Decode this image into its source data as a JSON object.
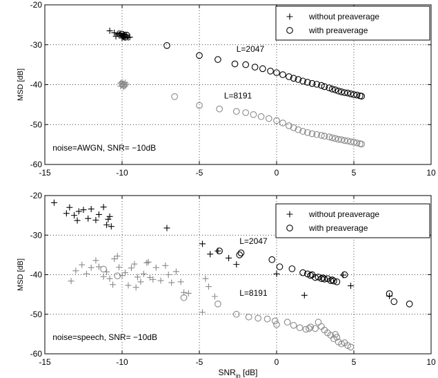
{
  "chart_data": [
    {
      "type": "scatter",
      "xlim": [
        -15,
        10
      ],
      "ylim": [
        -60,
        -20
      ],
      "xticks": [
        -15,
        -10,
        -5,
        0,
        5,
        10
      ],
      "yticks": [
        -60,
        -50,
        -40,
        -30,
        -20
      ],
      "xlabel_main": "",
      "xlabel_sub": "",
      "xlabel_unit": "",
      "ylabel": "MSD [dB]",
      "grid": true,
      "legend_position": "top-right",
      "annotations": [
        {
          "text": "L=2047",
          "x": -2.6,
          "y": -31.8
        },
        {
          "text": "L=8191",
          "x": -3.4,
          "y": -43.5
        },
        {
          "text": "noise=AWGN, SNR= −10dB",
          "x": -14.5,
          "y": -56.5
        }
      ],
      "series": [
        {
          "name": "without preaverage",
          "marker": "plus",
          "color": "#000000",
          "points": [
            [
              -10.8,
              -26.5
            ],
            [
              -10.5,
              -27.0
            ],
            [
              -10.3,
              -27.3
            ],
            [
              -10.2,
              -27.6
            ],
            [
              -10.1,
              -27.2
            ],
            [
              -10.0,
              -27.8
            ],
            [
              -9.9,
              -27.4
            ],
            [
              -9.8,
              -28.0
            ],
            [
              -9.7,
              -27.6
            ],
            [
              -9.6,
              -28.2
            ],
            [
              -10.4,
              -27.9
            ],
            [
              -10.0,
              -28.3
            ],
            [
              -9.5,
              -28.1
            ],
            [
              -9.9,
              -27.9
            ],
            [
              -10.2,
              -27.1
            ],
            [
              -9.8,
              -27.5
            ]
          ]
        },
        {
          "name": "with preaverage",
          "marker": "circle",
          "color": "#000000",
          "points": [
            [
              -10.0,
              -27.4
            ],
            [
              -9.9,
              -27.8
            ],
            [
              -9.8,
              -28.1
            ],
            [
              -9.7,
              -27.6
            ],
            [
              -7.1,
              -30.2
            ],
            [
              -5.0,
              -32.7
            ],
            [
              -3.8,
              -33.7
            ],
            [
              -2.7,
              -34.8
            ],
            [
              -2.0,
              -35.0
            ],
            [
              -1.4,
              -35.6
            ],
            [
              -0.9,
              -36.0
            ],
            [
              -0.4,
              -36.6
            ],
            [
              0.0,
              -37.0
            ],
            [
              0.4,
              -37.5
            ],
            [
              0.8,
              -38.0
            ],
            [
              1.1,
              -38.4
            ],
            [
              1.4,
              -38.7
            ],
            [
              1.7,
              -39.1
            ],
            [
              2.0,
              -39.4
            ],
            [
              2.3,
              -39.7
            ],
            [
              2.6,
              -39.9
            ],
            [
              2.9,
              -40.2
            ],
            [
              3.1,
              -40.5
            ],
            [
              3.4,
              -40.8
            ],
            [
              3.6,
              -41.1
            ],
            [
              3.8,
              -41.3
            ],
            [
              4.0,
              -41.6
            ],
            [
              4.2,
              -41.8
            ],
            [
              4.4,
              -42.0
            ],
            [
              4.6,
              -42.1
            ],
            [
              4.8,
              -42.3
            ],
            [
              5.0,
              -42.5
            ],
            [
              5.2,
              -42.6
            ],
            [
              5.4,
              -42.8
            ],
            [
              5.5,
              -42.9
            ]
          ]
        },
        {
          "name": "",
          "marker": "plus",
          "color": "#888888",
          "points": [
            [
              -10.1,
              -39.6
            ],
            [
              -10.0,
              -40.0
            ],
            [
              -9.9,
              -39.8
            ],
            [
              -9.8,
              -40.3
            ],
            [
              -9.9,
              -40.6
            ],
            [
              -10.0,
              -39.3
            ],
            [
              -9.7,
              -39.9
            ],
            [
              -10.1,
              -40.4
            ],
            [
              -9.8,
              -39.5
            ]
          ]
        },
        {
          "name": "",
          "marker": "circle",
          "color": "#888888",
          "points": [
            [
              -10.0,
              -39.8
            ],
            [
              -9.9,
              -40.2
            ],
            [
              -6.6,
              -43.0
            ],
            [
              -5.0,
              -45.2
            ],
            [
              -3.7,
              -46.1
            ],
            [
              -2.6,
              -46.7
            ],
            [
              -2.0,
              -47.0
            ],
            [
              -1.5,
              -47.5
            ],
            [
              -1.0,
              -48.0
            ],
            [
              -0.5,
              -48.5
            ],
            [
              0.0,
              -49.0
            ],
            [
              0.4,
              -49.6
            ],
            [
              0.8,
              -50.3
            ],
            [
              1.1,
              -50.8
            ],
            [
              1.4,
              -51.3
            ],
            [
              1.7,
              -51.7
            ],
            [
              2.0,
              -52.0
            ],
            [
              2.3,
              -52.3
            ],
            [
              2.6,
              -52.5
            ],
            [
              2.9,
              -52.7
            ],
            [
              3.1,
              -52.9
            ],
            [
              3.4,
              -53.1
            ],
            [
              3.6,
              -53.3
            ],
            [
              3.8,
              -53.5
            ],
            [
              4.0,
              -53.7
            ],
            [
              4.2,
              -53.8
            ],
            [
              4.4,
              -54.0
            ],
            [
              4.6,
              -54.1
            ],
            [
              4.8,
              -54.3
            ],
            [
              5.0,
              -54.4
            ],
            [
              5.2,
              -54.6
            ],
            [
              5.4,
              -54.8
            ],
            [
              5.5,
              -54.9
            ]
          ]
        }
      ]
    },
    {
      "type": "scatter",
      "xlim": [
        -15,
        10
      ],
      "ylim": [
        -60,
        -20
      ],
      "xticks": [
        -15,
        -10,
        -5,
        0,
        5,
        10
      ],
      "yticks": [
        -60,
        -50,
        -40,
        -30,
        -20
      ],
      "xlabel_main": "SNR",
      "xlabel_sub": "in",
      "xlabel_unit": " [dB]",
      "ylabel": "MSD [dB]",
      "grid": true,
      "legend_position": "top-right",
      "annotations": [
        {
          "text": "L=2047",
          "x": -2.4,
          "y": -32.2
        },
        {
          "text": "L=8191",
          "x": -2.4,
          "y": -45.3
        },
        {
          "text": "noise=speech, SNR= −10dB",
          "x": -14.5,
          "y": -56.5
        }
      ],
      "series": [
        {
          "name": "without preaverage",
          "marker": "plus",
          "color": "#000000",
          "points": [
            [
              -14.4,
              -21.8
            ],
            [
              -13.6,
              -24.5
            ],
            [
              -13.4,
              -23.0
            ],
            [
              -13.1,
              -25.0
            ],
            [
              -12.9,
              -26.3
            ],
            [
              -12.8,
              -24.0
            ],
            [
              -12.5,
              -23.6
            ],
            [
              -12.2,
              -25.8
            ],
            [
              -12.0,
              -23.4
            ],
            [
              -11.7,
              -26.2
            ],
            [
              -11.5,
              -24.8
            ],
            [
              -11.2,
              -22.9
            ],
            [
              -11.0,
              -27.4
            ],
            [
              -10.9,
              -26.0
            ],
            [
              -10.7,
              -27.8
            ],
            [
              -10.8,
              -25.3
            ],
            [
              -7.1,
              -28.2
            ],
            [
              -4.8,
              -32.2
            ],
            [
              -4.3,
              -34.8
            ],
            [
              -3.8,
              -34.0
            ],
            [
              -3.1,
              -35.8
            ],
            [
              -2.6,
              -37.4
            ],
            [
              0.0,
              -39.8
            ],
            [
              1.8,
              -45.2
            ],
            [
              4.3,
              -40.1
            ],
            [
              4.8,
              -42.8
            ],
            [
              7.3,
              -45.4
            ]
          ]
        },
        {
          "name": "with preaverage",
          "marker": "circle",
          "color": "#000000",
          "points": [
            [
              -3.7,
              -34.0
            ],
            [
              -2.4,
              -35.0
            ],
            [
              -2.3,
              -34.5
            ],
            [
              -0.3,
              -36.2
            ],
            [
              0.2,
              -38.0
            ],
            [
              1.0,
              -38.5
            ],
            [
              1.7,
              -39.5
            ],
            [
              2.0,
              -39.8
            ],
            [
              2.3,
              -40.0
            ],
            [
              2.5,
              -40.7
            ],
            [
              2.7,
              -40.6
            ],
            [
              2.9,
              -41.0
            ],
            [
              3.1,
              -41.1
            ],
            [
              3.3,
              -41.0
            ],
            [
              3.5,
              -41.5
            ],
            [
              3.7,
              -41.6
            ],
            [
              3.9,
              -41.8
            ],
            [
              4.4,
              -40.0
            ],
            [
              7.3,
              -44.8
            ],
            [
              7.6,
              -46.8
            ],
            [
              8.6,
              -47.4
            ],
            [
              3.0,
              -40.8
            ],
            [
              2.2,
              -40.2
            ],
            [
              3.6,
              -41.3
            ]
          ]
        },
        {
          "name": "",
          "marker": "plus",
          "color": "#888888",
          "points": [
            [
              -13.0,
              -39.0
            ],
            [
              -12.6,
              -37.5
            ],
            [
              -12.3,
              -39.8
            ],
            [
              -12.0,
              -38.2
            ],
            [
              -11.7,
              -36.4
            ],
            [
              -11.5,
              -38.0
            ],
            [
              -11.2,
              -40.5
            ],
            [
              -11.0,
              -39.3
            ],
            [
              -10.8,
              -41.0
            ],
            [
              -10.5,
              -36.0
            ],
            [
              -10.3,
              -35.3
            ],
            [
              -10.2,
              -38.1
            ],
            [
              -10.0,
              -40.2
            ],
            [
              -9.8,
              -39.5
            ],
            [
              -9.6,
              -42.7
            ],
            [
              -9.4,
              -38.3
            ],
            [
              -9.2,
              -37.3
            ],
            [
              -9.0,
              -40.6
            ],
            [
              -8.8,
              -41.8
            ],
            [
              -8.6,
              -39.8
            ],
            [
              -8.4,
              -37.0
            ],
            [
              -8.2,
              -40.7
            ],
            [
              -8.0,
              -41.2
            ],
            [
              -7.8,
              -38.2
            ],
            [
              -7.5,
              -41.5
            ],
            [
              -7.2,
              -37.7
            ],
            [
              -7.0,
              -40.0
            ],
            [
              -6.8,
              -42.0
            ],
            [
              -6.5,
              -39.2
            ],
            [
              -6.2,
              -41.8
            ],
            [
              -6.0,
              -44.5
            ],
            [
              -5.7,
              -44.7
            ],
            [
              -4.6,
              -41.0
            ],
            [
              -4.4,
              -43.0
            ],
            [
              -4.0,
              -45.5
            ],
            [
              -4.8,
              -49.5
            ],
            [
              -13.3,
              -41.6
            ],
            [
              -10.6,
              -42.5
            ],
            [
              -8.3,
              -36.8
            ],
            [
              -9.1,
              -43.2
            ]
          ]
        },
        {
          "name": "",
          "marker": "circle",
          "color": "#888888",
          "points": [
            [
              -11.2,
              -38.6
            ],
            [
              -10.3,
              -40.3
            ],
            [
              -6.0,
              -45.8
            ],
            [
              -3.8,
              -47.4
            ],
            [
              -2.6,
              -50.0
            ],
            [
              -1.8,
              -50.7
            ],
            [
              -1.2,
              -51.0
            ],
            [
              -0.6,
              -51.2
            ],
            [
              -0.1,
              -51.7
            ],
            [
              0.0,
              -52.6
            ],
            [
              0.7,
              -52.0
            ],
            [
              1.1,
              -52.8
            ],
            [
              1.5,
              -53.4
            ],
            [
              1.9,
              -53.8
            ],
            [
              2.2,
              -53.2
            ],
            [
              2.5,
              -53.6
            ],
            [
              2.7,
              -52.0
            ],
            [
              2.9,
              -53.1
            ],
            [
              3.1,
              -54.0
            ],
            [
              3.3,
              -54.7
            ],
            [
              3.5,
              -55.3
            ],
            [
              3.7,
              -56.2
            ],
            [
              3.9,
              -55.8
            ],
            [
              4.0,
              -57.0
            ],
            [
              4.2,
              -57.5
            ],
            [
              4.4,
              -57.2
            ],
            [
              4.6,
              -57.9
            ],
            [
              4.8,
              -58.3
            ],
            [
              3.8,
              -55.1
            ],
            [
              2.1,
              -53.6
            ]
          ]
        }
      ]
    }
  ]
}
